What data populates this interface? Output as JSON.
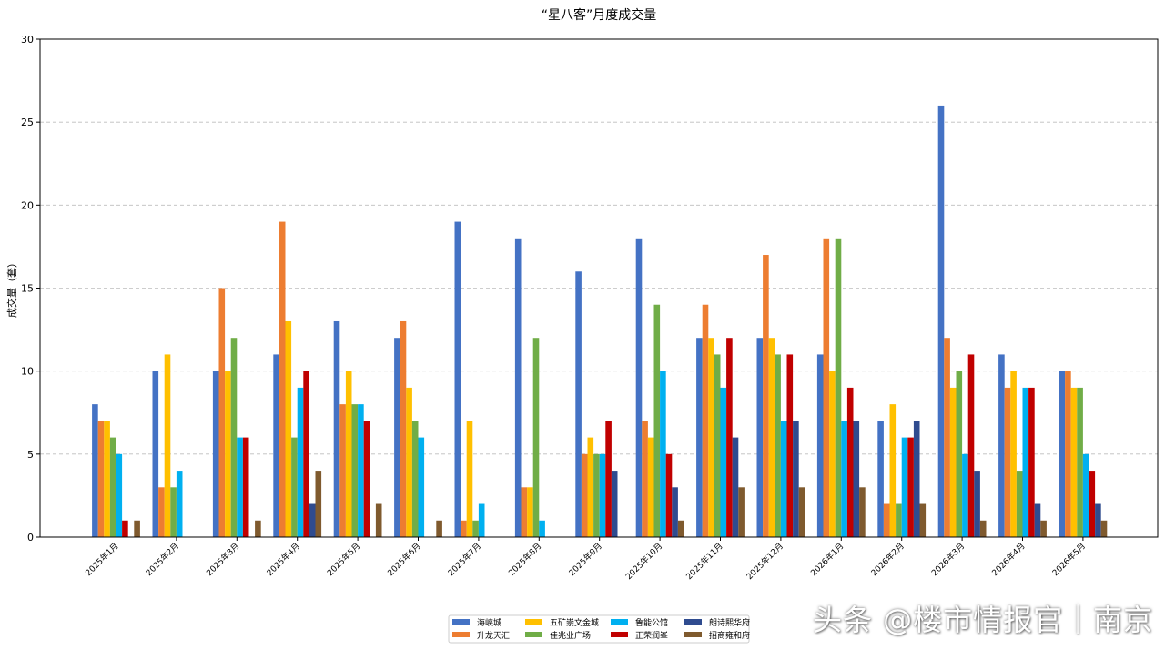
{
  "chart_data": {
    "type": "bar",
    "title": "“星八客”月度成交量",
    "xlabel": "",
    "ylabel": "成交量（套）",
    "ylim": [
      0,
      30
    ],
    "yticks": [
      0,
      5,
      10,
      15,
      20,
      25,
      30
    ],
    "grid": "y-dashed",
    "legend_position": "bottom-center",
    "categories": [
      "2025年1月",
      "2025年2月",
      "2025年3月",
      "2025年4月",
      "2025年5月",
      "2025年6月",
      "2025年7月",
      "2025年8月",
      "2025年9月",
      "2025年10月",
      "2025年11月",
      "2025年12月",
      "2026年1月",
      "2026年2月",
      "2026年3月",
      "2026年4月",
      "2026年5月"
    ],
    "series": [
      {
        "name": "海峡城",
        "color": "#4472c4",
        "values": [
          8,
          10,
          10,
          11,
          13,
          12,
          19,
          18,
          16,
          18,
          12,
          12,
          11,
          7,
          26,
          11,
          10
        ]
      },
      {
        "name": "升龙天汇",
        "color": "#ed7d31",
        "values": [
          7,
          3,
          15,
          19,
          8,
          13,
          1,
          3,
          5,
          7,
          14,
          17,
          18,
          2,
          12,
          9,
          10
        ]
      },
      {
        "name": "五矿崇文金城",
        "color": "#ffc000",
        "values": [
          7,
          11,
          10,
          13,
          10,
          9,
          7,
          3,
          6,
          6,
          12,
          12,
          10,
          8,
          9,
          10,
          9
        ]
      },
      {
        "name": "佳兆业广场",
        "color": "#70ad47",
        "values": [
          6,
          3,
          12,
          6,
          8,
          7,
          1,
          12,
          5,
          14,
          11,
          11,
          18,
          2,
          10,
          4,
          9
        ]
      },
      {
        "name": "鲁能公馆",
        "color": "#00b0f0",
        "values": [
          5,
          4,
          6,
          9,
          8,
          6,
          2,
          1,
          5,
          10,
          9,
          7,
          7,
          6,
          5,
          9,
          5
        ]
      },
      {
        "name": "正荣润峯",
        "color": "#c00000",
        "values": [
          1,
          0,
          6,
          10,
          7,
          0,
          0,
          0,
          7,
          5,
          12,
          11,
          9,
          6,
          11,
          9,
          4
        ]
      },
      {
        "name": "朗诗熙华府",
        "color": "#2f4b8f",
        "values": [
          0,
          0,
          0,
          2,
          0,
          0,
          0,
          0,
          4,
          3,
          6,
          7,
          7,
          7,
          4,
          2,
          2
        ]
      },
      {
        "name": "招商雍和府",
        "color": "#7f5a2e",
        "values": [
          1,
          0,
          1,
          4,
          2,
          1,
          0,
          0,
          0,
          1,
          3,
          3,
          3,
          2,
          1,
          1,
          1
        ]
      }
    ]
  },
  "watermark": "头条 @楼市情报官｜南京"
}
